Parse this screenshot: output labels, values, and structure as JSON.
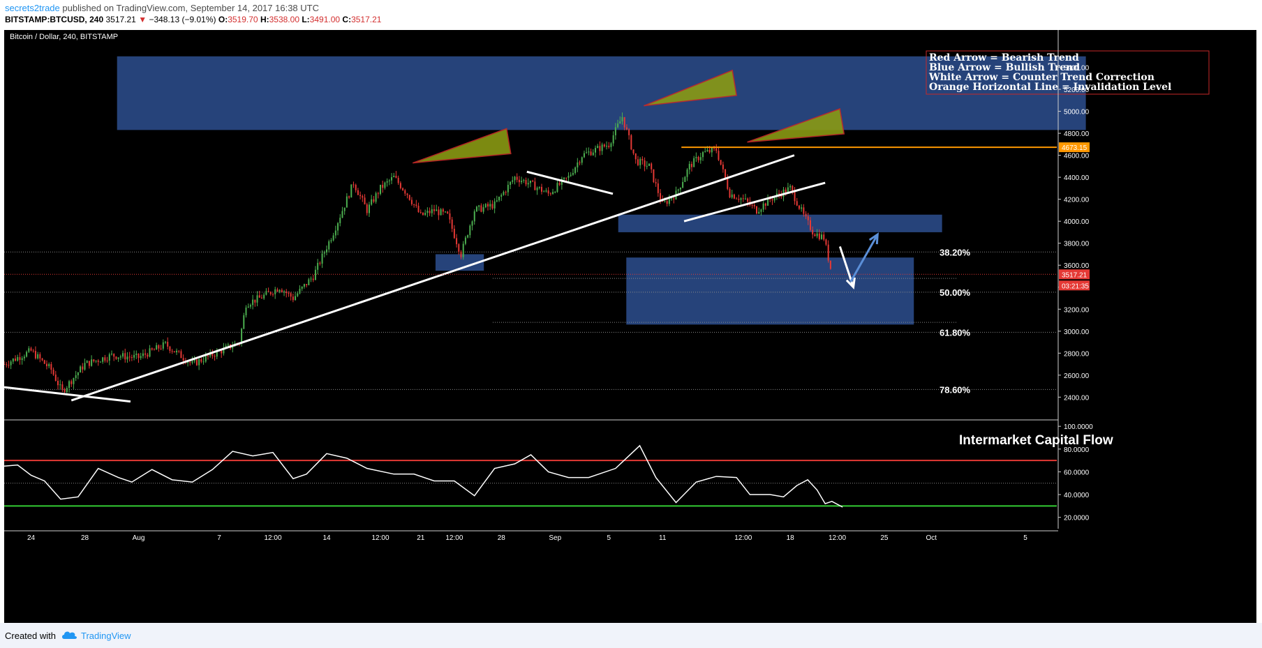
{
  "header": {
    "author": "secrets2trade",
    "published": "published on TradingView.com, September 14, 2017 16:38 UTC",
    "symbol": "BITSTAMP:BTCUSD, 240",
    "last": "3517.21",
    "change": "−348.13 (−9.01%)",
    "ohlc": [
      {
        "k": "O:",
        "v": "3519.70"
      },
      {
        "k": "H:",
        "v": "3538.00"
      },
      {
        "k": "L:",
        "v": "3491.00"
      },
      {
        "k": "C:",
        "v": "3517.21"
      }
    ]
  },
  "footer": {
    "created_with": "Created with",
    "brand": "TradingView"
  },
  "colors": {
    "background": "#000000",
    "bull_candle": "#4caf50",
    "bear_candle": "#e53935",
    "zone": "#2d4f8f",
    "invalidation": "#ff9800",
    "bearish": "#c62828",
    "bullish": "#5b8fd8",
    "trendline": "#ffffff",
    "overbought": "#e53935",
    "oversold": "#33cc33"
  },
  "chart_data": [
    {
      "type": "candlestick",
      "title": "Bitcoin / Dollar, 240, BITSTAMP",
      "y_ticks": [
        2400,
        2600,
        2800,
        3000,
        3200,
        3400,
        3600,
        3800,
        4000,
        4200,
        4400,
        4600,
        4800,
        5000,
        5200,
        5400
      ],
      "ylim": [
        2250,
        5600
      ],
      "x_ticks": [
        "24",
        "28",
        "Aug",
        "7",
        "12:00",
        "14",
        "12:00",
        "21",
        "12:00",
        "28",
        "Sep",
        "5",
        "11",
        "12:00",
        "18",
        "12:00",
        "25",
        "Oct",
        "5"
      ],
      "price_path": [
        {
          "d": 0,
          "p": 2700
        },
        {
          "d": 2,
          "p": 2820
        },
        {
          "d": 3.5,
          "p": 2650
        },
        {
          "d": 4.3,
          "p": 2450
        },
        {
          "d": 6,
          "p": 2700
        },
        {
          "d": 8,
          "p": 2780
        },
        {
          "d": 10,
          "p": 2760
        },
        {
          "d": 12,
          "p": 2880
        },
        {
          "d": 14,
          "p": 2700
        },
        {
          "d": 17.5,
          "p": 2900
        },
        {
          "d": 18,
          "p": 3250
        },
        {
          "d": 19,
          "p": 3300
        },
        {
          "d": 20.5,
          "p": 3400
        },
        {
          "d": 21.5,
          "p": 3300
        },
        {
          "d": 23,
          "p": 3500
        },
        {
          "d": 24.5,
          "p": 3900
        },
        {
          "d": 25.5,
          "p": 4200
        },
        {
          "d": 26,
          "p": 4350
        },
        {
          "d": 27,
          "p": 4100
        },
        {
          "d": 28,
          "p": 4300
        },
        {
          "d": 29,
          "p": 4400
        },
        {
          "d": 30,
          "p": 4250
        },
        {
          "d": 31,
          "p": 4050
        },
        {
          "d": 32,
          "p": 4100
        },
        {
          "d": 33,
          "p": 4050
        },
        {
          "d": 34,
          "p": 3700
        },
        {
          "d": 35,
          "p": 4100
        },
        {
          "d": 36.5,
          "p": 4150
        },
        {
          "d": 38,
          "p": 4400
        },
        {
          "d": 39,
          "p": 4350
        },
        {
          "d": 40.5,
          "p": 4250
        },
        {
          "d": 42,
          "p": 4400
        },
        {
          "d": 43,
          "p": 4600
        },
        {
          "d": 45,
          "p": 4700
        },
        {
          "d": 46,
          "p": 4950
        },
        {
          "d": 47,
          "p": 4550
        },
        {
          "d": 48,
          "p": 4500
        },
        {
          "d": 49,
          "p": 4150
        },
        {
          "d": 50,
          "p": 4250
        },
        {
          "d": 51,
          "p": 4500
        },
        {
          "d": 52,
          "p": 4620
        },
        {
          "d": 53,
          "p": 4650
        },
        {
          "d": 54,
          "p": 4250
        },
        {
          "d": 55,
          "p": 4200
        },
        {
          "d": 56,
          "p": 4100
        },
        {
          "d": 57,
          "p": 4200
        },
        {
          "d": 58.5,
          "p": 4300
        },
        {
          "d": 59.5,
          "p": 4050
        },
        {
          "d": 60.2,
          "p": 3900
        },
        {
          "d": 61,
          "p": 3850
        },
        {
          "d": 61.6,
          "p": 3520
        }
      ],
      "zones": [
        {
          "x0": 8.4,
          "x1": 80.5,
          "y0": 4830,
          "y1": 5500
        },
        {
          "x0": 32.1,
          "x1": 35.7,
          "y0": 3550,
          "y1": 3700
        },
        {
          "x0": 45.7,
          "x1": 69.8,
          "y0": 3900,
          "y1": 4060
        },
        {
          "x0": 46.3,
          "x1": 67.7,
          "y0": 3060,
          "y1": 3670
        }
      ],
      "trendlines": [
        {
          "x0": 0,
          "y0": 2490,
          "x1": 9.4,
          "y1": 2360
        },
        {
          "x0": 5,
          "y0": 2370,
          "x1": 58.8,
          "y1": 4600
        },
        {
          "x0": 38.9,
          "y0": 4450,
          "x1": 45.3,
          "y1": 4250
        },
        {
          "x0": 50.6,
          "y0": 4000,
          "x1": 61.1,
          "y1": 4350
        }
      ],
      "bearish_arrows": [
        {
          "x0": 30.4,
          "y0": 4530,
          "x1": 37.6,
          "y1": 4830
        },
        {
          "x0": 47.6,
          "y0": 5050,
          "x1": 54.4,
          "y1": 5360
        },
        {
          "x0": 55.3,
          "y0": 4720,
          "x1": 62.4,
          "y1": 5010
        }
      ],
      "white_arrow": {
        "x0": 62.2,
        "y0": 3770,
        "x1": 63.2,
        "y1": 3400
      },
      "blue_arrow": {
        "x0": 63.0,
        "y0": 3450,
        "x1": 65.0,
        "y1": 3880
      },
      "invalidation": {
        "value": 4673.15,
        "label": "4673.15",
        "x0": 50.4
      },
      "last_price": {
        "value": 3517.21,
        "label": "3517.21",
        "countdown": "03:21:35"
      },
      "fib_levels": [
        {
          "label": "38.20%",
          "value": 3720
        },
        {
          "label": "50.00%",
          "value": 3355
        },
        {
          "label": "61.80%",
          "value": 2990
        },
        {
          "label": "78.60%",
          "value": 2470
        }
      ],
      "extra_dotted_levels": [
        3480,
        3080
      ],
      "legend": [
        "Red Arrow = Bearish Trend",
        "Blue Arrow = Bullish Trend",
        "White Arrow = Counter Trend Correction",
        "Orange Horizontal Line = Invalidation Level"
      ]
    },
    {
      "type": "line",
      "title": "Intermarket Capital Flow",
      "y_ticks": [
        "100.0000",
        "80.0000",
        "60.0000",
        "40.0000",
        "20.0000"
      ],
      "ylim": [
        10,
        105
      ],
      "overbought": 70,
      "oversold": 30,
      "midline": 50,
      "values": [
        {
          "d": 0,
          "v": 65
        },
        {
          "d": 1,
          "v": 66
        },
        {
          "d": 2,
          "v": 57
        },
        {
          "d": 3,
          "v": 52
        },
        {
          "d": 4.2,
          "v": 36
        },
        {
          "d": 5.5,
          "v": 38
        },
        {
          "d": 7,
          "v": 63
        },
        {
          "d": 8.5,
          "v": 55
        },
        {
          "d": 9.5,
          "v": 51
        },
        {
          "d": 11,
          "v": 62
        },
        {
          "d": 12.5,
          "v": 53
        },
        {
          "d": 14,
          "v": 51
        },
        {
          "d": 15.5,
          "v": 62
        },
        {
          "d": 17,
          "v": 78
        },
        {
          "d": 18.5,
          "v": 74
        },
        {
          "d": 20,
          "v": 77
        },
        {
          "d": 21.5,
          "v": 54
        },
        {
          "d": 22.5,
          "v": 58
        },
        {
          "d": 24,
          "v": 76
        },
        {
          "d": 25.5,
          "v": 72
        },
        {
          "d": 27,
          "v": 63
        },
        {
          "d": 29,
          "v": 58
        },
        {
          "d": 30.5,
          "v": 58
        },
        {
          "d": 32,
          "v": 52
        },
        {
          "d": 33.5,
          "v": 52
        },
        {
          "d": 35,
          "v": 39
        },
        {
          "d": 36.5,
          "v": 63
        },
        {
          "d": 38,
          "v": 67
        },
        {
          "d": 39.2,
          "v": 75
        },
        {
          "d": 40.5,
          "v": 60
        },
        {
          "d": 42,
          "v": 55
        },
        {
          "d": 43.5,
          "v": 55
        },
        {
          "d": 45.5,
          "v": 63
        },
        {
          "d": 47.3,
          "v": 83
        },
        {
          "d": 48.5,
          "v": 55
        },
        {
          "d": 50,
          "v": 33
        },
        {
          "d": 51.5,
          "v": 51
        },
        {
          "d": 53,
          "v": 56
        },
        {
          "d": 54.5,
          "v": 55
        },
        {
          "d": 55.5,
          "v": 40
        },
        {
          "d": 57,
          "v": 40
        },
        {
          "d": 58,
          "v": 38
        },
        {
          "d": 59,
          "v": 48
        },
        {
          "d": 59.8,
          "v": 53
        },
        {
          "d": 60.5,
          "v": 44
        },
        {
          "d": 61.1,
          "v": 32
        },
        {
          "d": 61.6,
          "v": 34
        },
        {
          "d": 62.4,
          "v": 29
        }
      ]
    }
  ]
}
